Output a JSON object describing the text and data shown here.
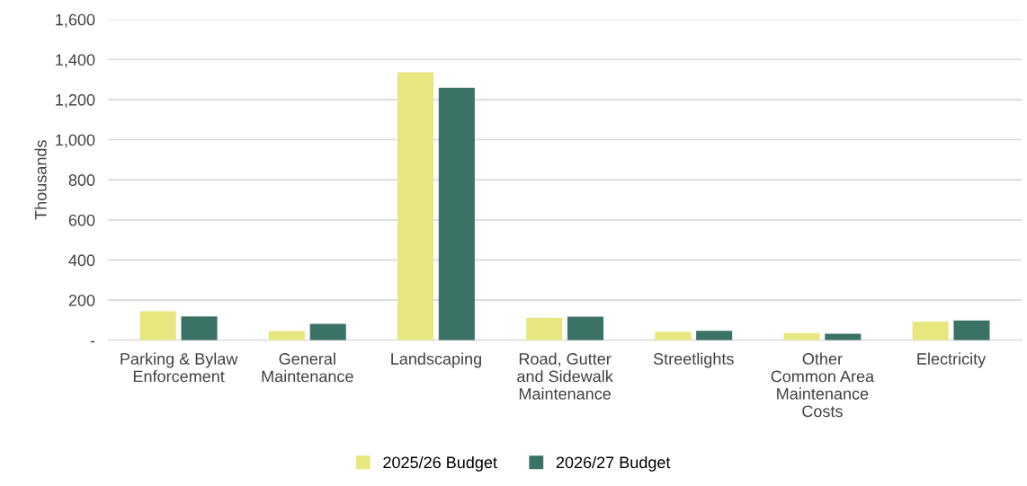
{
  "chart_data": {
    "type": "bar",
    "ylabel": "Thousands",
    "categories": [
      "Parking & Bylaw\nEnforcement",
      "General\nMaintenance",
      "Landscaping",
      "Road, Gutter\nand Sidewalk\nMaintenance",
      "Streetlights",
      "Other\nCommon Area\nMaintenance\nCosts",
      "Electricity"
    ],
    "series": [
      {
        "name": "2025/26 Budget",
        "color": "#e8e67e",
        "values": [
          144,
          46,
          1336,
          112,
          42,
          36,
          93
        ]
      },
      {
        "name": "2026/27 Budget",
        "color": "#3a7266",
        "values": [
          119,
          81,
          1259,
          117,
          47,
          32,
          98
        ]
      }
    ],
    "ylim": [
      0,
      1600
    ],
    "yticks": [
      {
        "value": 0,
        "label": "-"
      },
      {
        "value": 200,
        "label": "200"
      },
      {
        "value": 400,
        "label": "400"
      },
      {
        "value": 600,
        "label": "600"
      },
      {
        "value": 800,
        "label": "800"
      },
      {
        "value": 1000,
        "label": "1,000"
      },
      {
        "value": 1200,
        "label": "1,200"
      },
      {
        "value": 1400,
        "label": "1,400"
      },
      {
        "value": 1600,
        "label": "1,600"
      }
    ],
    "grid": "y",
    "legend": "bottom"
  }
}
